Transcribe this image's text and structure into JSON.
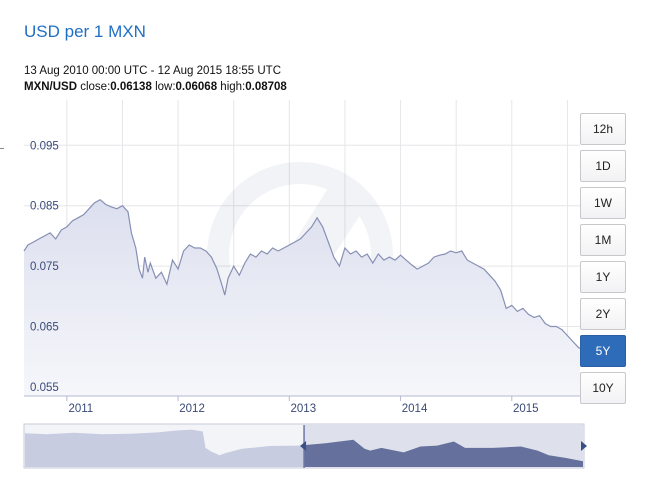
{
  "header": {
    "title": "USD per 1 MXN",
    "date_range": "13 Aug 2010 00:00 UTC - 12 Aug 2015 18:55 UTC",
    "stats": {
      "pair": "MXN/USD",
      "close_label": "close:",
      "close": "0.06138",
      "low_label": "low:",
      "low": "0.06068",
      "high_label": "high:",
      "high": "0.08708"
    }
  },
  "range_buttons": [
    {
      "label": "12h",
      "active": false
    },
    {
      "label": "1D",
      "active": false
    },
    {
      "label": "1W",
      "active": false
    },
    {
      "label": "1M",
      "active": false
    },
    {
      "label": "1Y",
      "active": false
    },
    {
      "label": "2Y",
      "active": false
    },
    {
      "label": "5Y",
      "active": true
    },
    {
      "label": "10Y",
      "active": false
    }
  ],
  "colors": {
    "title": "#1f6fc4",
    "line": "#8790b4",
    "area_top": "#dcdfee",
    "area_bottom": "#f6f7fb",
    "nav_selected": "#5c6894",
    "nav_unselected": "#c8cce0",
    "button_active": "#2e6bb8"
  },
  "chart_data": {
    "type": "area",
    "ylim": [
      0.0535,
      0.1025
    ],
    "xlim": [
      2010.615,
      2015.613
    ],
    "y_ticks": [
      0.055,
      0.065,
      0.075,
      0.085,
      0.095
    ],
    "y_tick_labels": [
      "0.055",
      "0.065",
      "0.075",
      "0.085",
      "0.095"
    ],
    "x_ticks": [
      2011,
      2012,
      2013,
      2014,
      2015
    ],
    "x_tick_labels": [
      "2011",
      "2012",
      "2013",
      "2014",
      "2015"
    ],
    "grid": true,
    "series": [
      {
        "x": [
          2010.615,
          2010.65,
          2010.7,
          2010.75,
          2010.8,
          2010.85,
          2010.9,
          2010.95,
          2011.0,
          2011.05,
          2011.1,
          2011.15,
          2011.2,
          2011.25,
          2011.3,
          2011.35,
          2011.4,
          2011.45,
          2011.5,
          2011.55,
          2011.58,
          2011.62,
          2011.65,
          2011.68,
          2011.7,
          2011.73,
          2011.75,
          2011.8,
          2011.85,
          2011.9,
          2011.95,
          2012.0,
          2012.05,
          2012.1,
          2012.15,
          2012.2,
          2012.25,
          2012.3,
          2012.35,
          2012.4,
          2012.42,
          2012.45,
          2012.5,
          2012.55,
          2012.6,
          2012.65,
          2012.7,
          2012.75,
          2012.8,
          2012.85,
          2012.9,
          2012.95,
          2013.0,
          2013.05,
          2013.1,
          2013.15,
          2013.2,
          2013.25,
          2013.3,
          2013.35,
          2013.4,
          2013.45,
          2013.5,
          2013.55,
          2013.6,
          2013.65,
          2013.7,
          2013.75,
          2013.8,
          2013.85,
          2013.9,
          2013.95,
          2014.0,
          2014.05,
          2014.1,
          2014.15,
          2014.2,
          2014.25,
          2014.3,
          2014.35,
          2014.4,
          2014.45,
          2014.5,
          2014.55,
          2014.6,
          2014.65,
          2014.7,
          2014.75,
          2014.8,
          2014.85,
          2014.9,
          2014.95,
          2015.0,
          2015.05,
          2015.1,
          2015.15,
          2015.2,
          2015.25,
          2015.3,
          2015.35,
          2015.4,
          2015.45,
          2015.5,
          2015.55,
          2015.6,
          2015.613
        ],
        "y": [
          0.0775,
          0.0785,
          0.079,
          0.0795,
          0.08,
          0.0805,
          0.0795,
          0.081,
          0.0815,
          0.0825,
          0.083,
          0.0835,
          0.0845,
          0.0855,
          0.086,
          0.0852,
          0.0848,
          0.0845,
          0.085,
          0.084,
          0.0805,
          0.078,
          0.0745,
          0.073,
          0.0765,
          0.074,
          0.0755,
          0.073,
          0.074,
          0.072,
          0.076,
          0.0745,
          0.0775,
          0.0785,
          0.078,
          0.078,
          0.0775,
          0.0765,
          0.0745,
          0.0715,
          0.0702,
          0.073,
          0.075,
          0.0735,
          0.0755,
          0.077,
          0.0765,
          0.0775,
          0.077,
          0.078,
          0.0775,
          0.078,
          0.0785,
          0.079,
          0.0795,
          0.0805,
          0.0815,
          0.083,
          0.0815,
          0.079,
          0.0765,
          0.075,
          0.078,
          0.077,
          0.0775,
          0.0765,
          0.077,
          0.0755,
          0.077,
          0.076,
          0.0765,
          0.076,
          0.0768,
          0.076,
          0.0752,
          0.0745,
          0.075,
          0.0755,
          0.0765,
          0.0768,
          0.077,
          0.0775,
          0.0772,
          0.0775,
          0.076,
          0.0755,
          0.075,
          0.0745,
          0.0735,
          0.0725,
          0.071,
          0.068,
          0.0685,
          0.0675,
          0.068,
          0.067,
          0.0665,
          0.0668,
          0.0655,
          0.065,
          0.065,
          0.0645,
          0.0635,
          0.0625,
          0.0615,
          0.0614
        ]
      }
    ],
    "navigator": {
      "x": [
        2005.615,
        2006.0,
        2006.5,
        2007.0,
        2007.5,
        2008.0,
        2008.3,
        2008.6,
        2008.8,
        2008.85,
        2008.95,
        2009.1,
        2009.2,
        2009.5,
        2010.0,
        2010.5,
        2011.0,
        2011.5,
        2011.7,
        2011.8,
        2012.0,
        2012.4,
        2012.7,
        2013.0,
        2013.3,
        2013.5,
        2014.0,
        2014.5,
        2014.8,
        2015.0,
        2015.3,
        2015.613
      ],
      "y": [
        0.092,
        0.091,
        0.0925,
        0.091,
        0.0915,
        0.093,
        0.095,
        0.096,
        0.094,
        0.076,
        0.072,
        0.068,
        0.07,
        0.075,
        0.078,
        0.0785,
        0.081,
        0.085,
        0.075,
        0.073,
        0.076,
        0.071,
        0.0775,
        0.0785,
        0.083,
        0.076,
        0.076,
        0.0775,
        0.073,
        0.068,
        0.065,
        0.0614
      ],
      "xlim": [
        2005.615,
        2015.613
      ],
      "ylim": [
        0.055,
        0.1
      ],
      "selected_range": [
        2010.615,
        2015.613
      ]
    }
  }
}
